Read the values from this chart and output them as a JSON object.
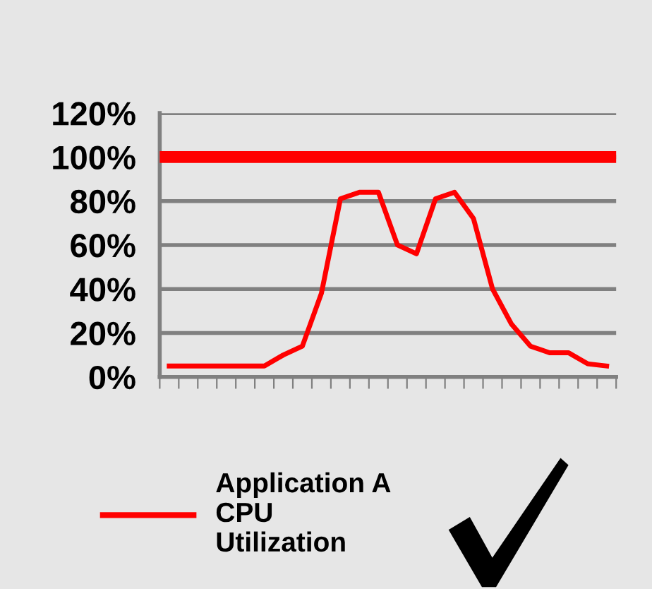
{
  "chart_data": {
    "type": "line",
    "categories": [
      null,
      null,
      null,
      null,
      null,
      null,
      null,
      null,
      null,
      null,
      null,
      null,
      null,
      null,
      null,
      null,
      null,
      null,
      null,
      null,
      null,
      null,
      null,
      null
    ],
    "series": [
      {
        "name": "Application A\nCPU\nUtilization",
        "color": "#ff0000",
        "values": [
          5,
          5,
          5,
          5,
          5,
          5,
          10,
          14,
          38,
          81,
          84,
          84,
          60,
          56,
          81,
          84,
          72,
          40,
          24,
          14,
          11,
          11,
          6,
          5
        ]
      }
    ],
    "ref_lines": [
      {
        "axis": "y",
        "value": 100,
        "color": "#ff0000",
        "line_style": "solid"
      }
    ],
    "ylim": [
      0,
      120
    ],
    "yticks": [
      {
        "value": 0,
        "label": "0%"
      },
      {
        "value": 20,
        "label": "20%"
      },
      {
        "value": 40,
        "label": "40%"
      },
      {
        "value": 60,
        "label": "60%"
      },
      {
        "value": 80,
        "label": "80%"
      },
      {
        "value": 100,
        "label": "100%"
      },
      {
        "value": 120,
        "label": "120%"
      }
    ],
    "grid": "y",
    "legend": "bottom",
    "marker": "none",
    "line_style": "solid"
  }
}
